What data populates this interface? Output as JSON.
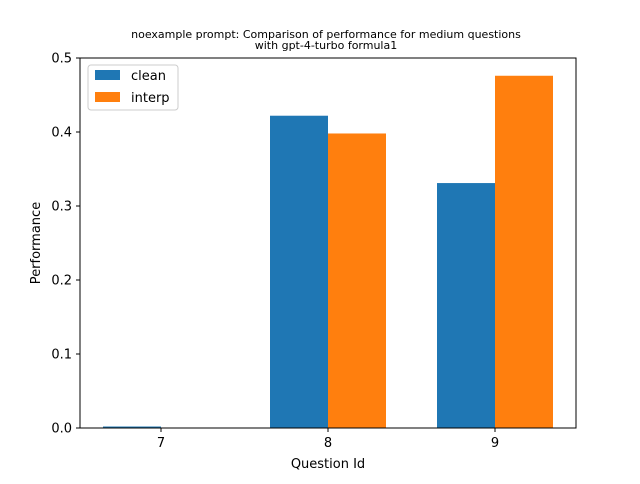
{
  "chart_data": {
    "type": "bar",
    "title_lines": [
      "noexample prompt: Comparison of performance for medium questions",
      "with gpt-4-turbo formula1"
    ],
    "xlabel": "Question Id",
    "ylabel": "Performance",
    "categories": [
      "7",
      "8",
      "9"
    ],
    "ylim": [
      0,
      0.5
    ],
    "yticks": [
      "0.0",
      "0.1",
      "0.2",
      "0.3",
      "0.4",
      "0.5"
    ],
    "grid": false,
    "legend_position": "top-left",
    "series": [
      {
        "name": "clean",
        "color": "#1f77b4",
        "values": [
          0.002,
          0.422,
          0.331
        ]
      },
      {
        "name": "interp",
        "color": "#ff7f0e",
        "values": [
          0.0,
          0.398,
          0.476
        ]
      }
    ]
  }
}
